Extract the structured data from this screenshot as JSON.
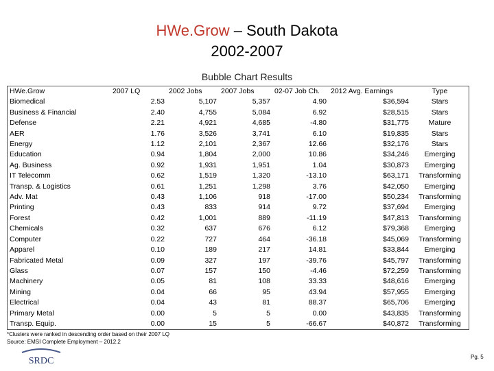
{
  "title": {
    "brand": "HWe.Grow",
    "rest": " – South Dakota",
    "line2": "2002-2007"
  },
  "subtitle": "Bubble Chart Results",
  "table": {
    "headers": [
      "HWe.Grow",
      "2007 LQ",
      "2002 Jobs",
      "2007 Jobs",
      "02-07 Job Ch.",
      "2012 Avg. Earnings",
      "Type"
    ],
    "rows": [
      [
        "Biomedical",
        "2.53",
        "5,107",
        "5,357",
        "4.90",
        "$36,594",
        "Stars"
      ],
      [
        "Business & Financial",
        "2.40",
        "4,755",
        "5,084",
        "6.92",
        "$28,515",
        "Stars"
      ],
      [
        "Defense",
        "2.21",
        "4,921",
        "4,685",
        "-4.80",
        "$31,775",
        "Mature"
      ],
      [
        "AER",
        "1.76",
        "3,526",
        "3,741",
        "6.10",
        "$19,835",
        "Stars"
      ],
      [
        "Energy",
        "1.12",
        "2,101",
        "2,367",
        "12.66",
        "$32,176",
        "Stars"
      ],
      [
        "Education",
        "0.94",
        "1,804",
        "2,000",
        "10.86",
        "$34,246",
        "Emerging"
      ],
      [
        "Ag. Business",
        "0.92",
        "1,931",
        "1,951",
        "1.04",
        "$30,873",
        "Emerging"
      ],
      [
        "IT Telecomm",
        "0.62",
        "1,519",
        "1,320",
        "-13.10",
        "$63,171",
        "Transforming"
      ],
      [
        "Transp. & Logistics",
        "0.61",
        "1,251",
        "1,298",
        "3.76",
        "$42,050",
        "Emerging"
      ],
      [
        "Adv. Mat",
        "0.43",
        "1,106",
        "918",
        "-17.00",
        "$50,234",
        "Transforming"
      ],
      [
        "Printing",
        "0.43",
        "833",
        "914",
        "9.72",
        "$37,694",
        "Emerging"
      ],
      [
        "Forest",
        "0.42",
        "1,001",
        "889",
        "-11.19",
        "$47,813",
        "Transforming"
      ],
      [
        "Chemicals",
        "0.32",
        "637",
        "676",
        "6.12",
        "$79,368",
        "Emerging"
      ],
      [
        "Computer",
        "0.22",
        "727",
        "464",
        "-36.18",
        "$45,069",
        "Transforming"
      ],
      [
        "Apparel",
        "0.10",
        "189",
        "217",
        "14.81",
        "$33,844",
        "Emerging"
      ],
      [
        "Fabricated Metal",
        "0.09",
        "327",
        "197",
        "-39.76",
        "$45,797",
        "Transforming"
      ],
      [
        "Glass",
        "0.07",
        "157",
        "150",
        "-4.46",
        "$72,259",
        "Transforming"
      ],
      [
        "Machinery",
        "0.05",
        "81",
        "108",
        "33.33",
        "$48,616",
        "Emerging"
      ],
      [
        "Mining",
        "0.04",
        "66",
        "95",
        "43.94",
        "$57,955",
        "Emerging"
      ],
      [
        "Electrical",
        "0.04",
        "43",
        "81",
        "88.37",
        "$65,706",
        "Emerging"
      ],
      [
        "Primary Metal",
        "0.00",
        "5",
        "5",
        "0.00",
        "$43,835",
        "Transforming"
      ],
      [
        "Transp. Equip.",
        "0.00",
        "15",
        "5",
        "-66.67",
        "$40,872",
        "Transforming"
      ]
    ]
  },
  "footnote": {
    "line1": "*Clusters were ranked in descending order based on their 2007 LQ",
    "line2": "Source: EMSI Complete Employment – 2012.2"
  },
  "logo_text": "SRDC",
  "page_number": "Pg. 5"
}
